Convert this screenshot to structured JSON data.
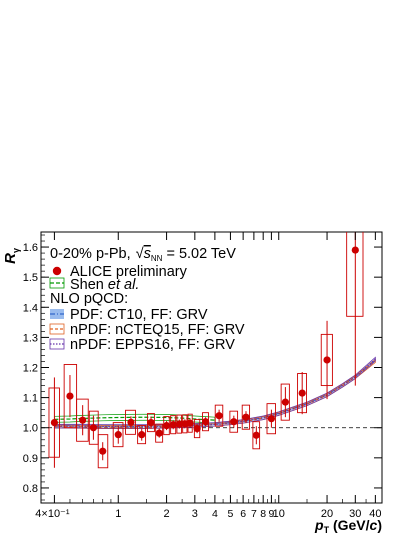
{
  "chart_data": {
    "type": "scatter",
    "title": "",
    "xlabel": "p_T (GeV/c)",
    "xlabel_parts": {
      "p": "p",
      "sub": "T",
      "units": " (GeV/",
      "c": "c",
      "close": ")"
    },
    "ylabel": "R_γ",
    "ylabel_parts": {
      "main": "R",
      "sub": "γ"
    },
    "x_scale": "log",
    "xlim": [
      0.33,
      44
    ],
    "ylim": [
      0.75,
      1.65
    ],
    "x_ticks": [
      {
        "v": 0.4,
        "label": "4×10⁻¹"
      },
      {
        "v": 1,
        "label": "1"
      },
      {
        "v": 2,
        "label": "2"
      },
      {
        "v": 3,
        "label": "3"
      },
      {
        "v": 4,
        "label": "4"
      },
      {
        "v": 5,
        "label": "5"
      },
      {
        "v": 6,
        "label": "6"
      },
      {
        "v": 7,
        "label": "7"
      },
      {
        "v": 8,
        "label": "8"
      },
      {
        "v": 9,
        "label": "9"
      },
      {
        "v": 10,
        "label": "10"
      },
      {
        "v": 20,
        "label": "20"
      },
      {
        "v": 30,
        "label": "30"
      },
      {
        "v": 40,
        "label": "40"
      }
    ],
    "y_ticks": [
      {
        "v": 0.8,
        "label": "0.8"
      },
      {
        "v": 0.9,
        "label": "0.9"
      },
      {
        "v": 1.0,
        "label": "1.0"
      },
      {
        "v": 1.1,
        "label": "1.1"
      },
      {
        "v": 1.2,
        "label": "1.2"
      },
      {
        "v": 1.3,
        "label": "1.3"
      },
      {
        "v": 1.4,
        "label": "1.4"
      },
      {
        "v": 1.5,
        "label": "1.5"
      },
      {
        "v": 1.6,
        "label": "1.6"
      }
    ],
    "reference_line": 1.0,
    "legend": {
      "header": "0-20% p-Pb, √s_NN = 5.02 TeV",
      "header_parts": {
        "a": "0-20% p-Pb, ",
        "s": "s",
        "nn": "NN",
        "b": " = 5.02 TeV"
      },
      "entries": [
        {
          "label": "ALICE preliminary"
        },
        {
          "label": "Shen et al.",
          "parts": {
            "a": "Shen ",
            "b": "et al."
          }
        },
        {
          "label": "NLO pQCD:"
        },
        {
          "label": "PDF: CT10, FF: GRV"
        },
        {
          "label": "nPDF: nCTEQ15, FF: GRV"
        },
        {
          "label": "nPDF: EPPS16, FF: GRV"
        }
      ]
    },
    "series": [
      {
        "name": "ALICE preliminary",
        "color": "#cc0000",
        "points": [
          {
            "x": 0.4,
            "y": 1.017,
            "stat": 0.15,
            "sys": 0.115,
            "xlo": 0.37,
            "xhi": 0.43
          },
          {
            "x": 0.5,
            "y": 1.105,
            "stat": 0.07,
            "sys": 0.105,
            "xlo": 0.46,
            "xhi": 0.55
          },
          {
            "x": 0.6,
            "y": 1.025,
            "stat": 0.05,
            "sys": 0.07,
            "xlo": 0.55,
            "xhi": 0.65
          },
          {
            "x": 0.7,
            "y": 1.0,
            "stat": 0.04,
            "sys": 0.055,
            "xlo": 0.66,
            "xhi": 0.75
          },
          {
            "x": 0.8,
            "y": 0.922,
            "stat": 0.03,
            "sys": 0.055,
            "xlo": 0.75,
            "xhi": 0.86
          },
          {
            "x": 1.0,
            "y": 0.977,
            "stat": 0.03,
            "sys": 0.04,
            "xlo": 0.93,
            "xhi": 1.07
          },
          {
            "x": 1.2,
            "y": 1.018,
            "stat": 0.02,
            "sys": 0.04,
            "xlo": 1.11,
            "xhi": 1.28
          },
          {
            "x": 1.4,
            "y": 0.977,
            "stat": 0.02,
            "sys": 0.03,
            "xlo": 1.32,
            "xhi": 1.48
          },
          {
            "x": 1.6,
            "y": 1.017,
            "stat": 0.02,
            "sys": 0.03,
            "xlo": 1.52,
            "xhi": 1.68
          },
          {
            "x": 1.8,
            "y": 0.982,
            "stat": 0.015,
            "sys": 0.03,
            "xlo": 1.71,
            "xhi": 1.89
          },
          {
            "x": 2.0,
            "y": 1.007,
            "stat": 0.015,
            "sys": 0.03,
            "xlo": 1.92,
            "xhi": 2.08
          },
          {
            "x": 2.2,
            "y": 1.01,
            "stat": 0.015,
            "sys": 0.03,
            "xlo": 2.12,
            "xhi": 2.28
          },
          {
            "x": 2.4,
            "y": 1.012,
            "stat": 0.015,
            "sys": 0.03,
            "xlo": 2.32,
            "xhi": 2.48
          },
          {
            "x": 2.6,
            "y": 1.013,
            "stat": 0.015,
            "sys": 0.03,
            "xlo": 2.52,
            "xhi": 2.68
          },
          {
            "x": 2.8,
            "y": 1.015,
            "stat": 0.015,
            "sys": 0.03,
            "xlo": 2.72,
            "xhi": 2.89
          },
          {
            "x": 3.1,
            "y": 0.997,
            "stat": 0.015,
            "sys": 0.03,
            "xlo": 2.98,
            "xhi": 3.22
          },
          {
            "x": 3.5,
            "y": 1.02,
            "stat": 0.015,
            "sys": 0.03,
            "xlo": 3.35,
            "xhi": 3.65
          },
          {
            "x": 4.25,
            "y": 1.04,
            "stat": 0.02,
            "sys": 0.035,
            "xlo": 4.02,
            "xhi": 4.48
          },
          {
            "x": 5.25,
            "y": 1.02,
            "stat": 0.02,
            "sys": 0.035,
            "xlo": 4.96,
            "xhi": 5.54
          },
          {
            "x": 6.25,
            "y": 1.035,
            "stat": 0.02,
            "sys": 0.04,
            "xlo": 5.92,
            "xhi": 6.58
          },
          {
            "x": 7.25,
            "y": 0.975,
            "stat": 0.03,
            "sys": 0.045,
            "xlo": 6.9,
            "xhi": 7.6
          },
          {
            "x": 9.0,
            "y": 1.03,
            "stat": 0.03,
            "sys": 0.05,
            "xlo": 8.45,
            "xhi": 9.55
          },
          {
            "x": 11.0,
            "y": 1.085,
            "stat": 0.05,
            "sys": 0.06,
            "xlo": 10.35,
            "xhi": 11.65
          },
          {
            "x": 14.0,
            "y": 1.115,
            "stat": 0.07,
            "sys": 0.065,
            "xlo": 13.1,
            "xhi": 14.9
          },
          {
            "x": 20.0,
            "y": 1.225,
            "stat": 0.13,
            "sys": 0.085,
            "xlo": 18.4,
            "xhi": 21.6
          },
          {
            "x": 30.0,
            "y": 1.59,
            "stat": 0.45,
            "sys": 0.22,
            "xlo": 26.5,
            "xhi": 33.5
          }
        ]
      },
      {
        "name": "Shen et al.",
        "color": "#009900",
        "x": [
          0.4,
          0.5,
          0.6,
          0.8,
          1.0,
          1.5,
          2.0,
          2.5,
          3.0,
          3.5,
          4.0
        ],
        "y": [
          1.028,
          1.029,
          1.031,
          1.033,
          1.034,
          1.035,
          1.034,
          1.032,
          1.029,
          1.027,
          1.025
        ],
        "band": 0.01
      },
      {
        "name": "PDF: CT10, FF: GRV",
        "color": "#3366cc",
        "x": [
          0.4,
          0.6,
          0.8,
          1.0,
          1.5,
          2.0,
          3.0,
          4.0,
          5.0,
          6.0,
          8.0,
          10.0,
          15.0,
          20.0,
          25.0,
          30.0,
          40.0
        ],
        "y": [
          1.007,
          1.007,
          1.006,
          1.006,
          1.006,
          1.007,
          1.009,
          1.012,
          1.017,
          1.022,
          1.034,
          1.048,
          1.08,
          1.11,
          1.142,
          1.17,
          1.225
        ],
        "band": 0.006
      },
      {
        "name": "nPDF: nCTEQ15, FF: GRV",
        "color": "#e06020",
        "x": [
          0.4,
          0.6,
          0.8,
          1.0,
          1.5,
          2.0,
          3.0,
          4.0,
          5.0,
          6.0,
          8.0,
          10.0,
          15.0,
          20.0,
          25.0,
          30.0,
          40.0
        ],
        "y": [
          1.004,
          1.003,
          1.002,
          1.002,
          1.002,
          1.004,
          1.007,
          1.01,
          1.015,
          1.02,
          1.032,
          1.046,
          1.078,
          1.108,
          1.14,
          1.168,
          1.222
        ],
        "band": 0.005
      },
      {
        "name": "nPDF: EPPS16, FF: GRV",
        "color": "#6633aa",
        "x": [
          0.4,
          0.6,
          0.8,
          1.0,
          1.5,
          2.0,
          3.0,
          4.0,
          5.0,
          6.0,
          8.0,
          10.0,
          15.0,
          20.0,
          25.0,
          30.0,
          40.0
        ],
        "y": [
          1.005,
          1.005,
          1.004,
          1.004,
          1.004,
          1.005,
          1.008,
          1.011,
          1.016,
          1.021,
          1.033,
          1.047,
          1.079,
          1.109,
          1.141,
          1.169,
          1.228
        ],
        "band": 0.006
      }
    ]
  }
}
